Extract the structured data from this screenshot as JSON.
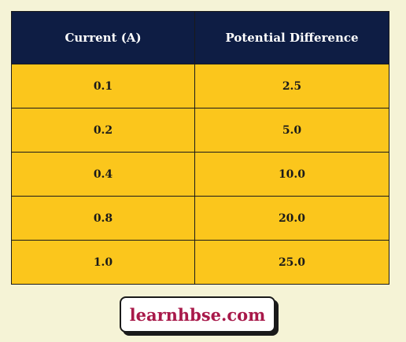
{
  "table": {
    "headers": [
      "Current (A)",
      "Potential Difference"
    ],
    "rows": [
      [
        "0.1",
        "2.5"
      ],
      [
        "0.2",
        "5.0"
      ],
      [
        "0.4",
        "10.0"
      ],
      [
        "0.8",
        "20.0"
      ],
      [
        "1.0",
        "25.0"
      ]
    ]
  },
  "watermark": {
    "text": "learnhbse.com"
  },
  "colors": {
    "background": "#f5f3d6",
    "header_bg": "#0e1d44",
    "cell_bg": "#fbc61c",
    "watermark_text": "#a8194a"
  }
}
